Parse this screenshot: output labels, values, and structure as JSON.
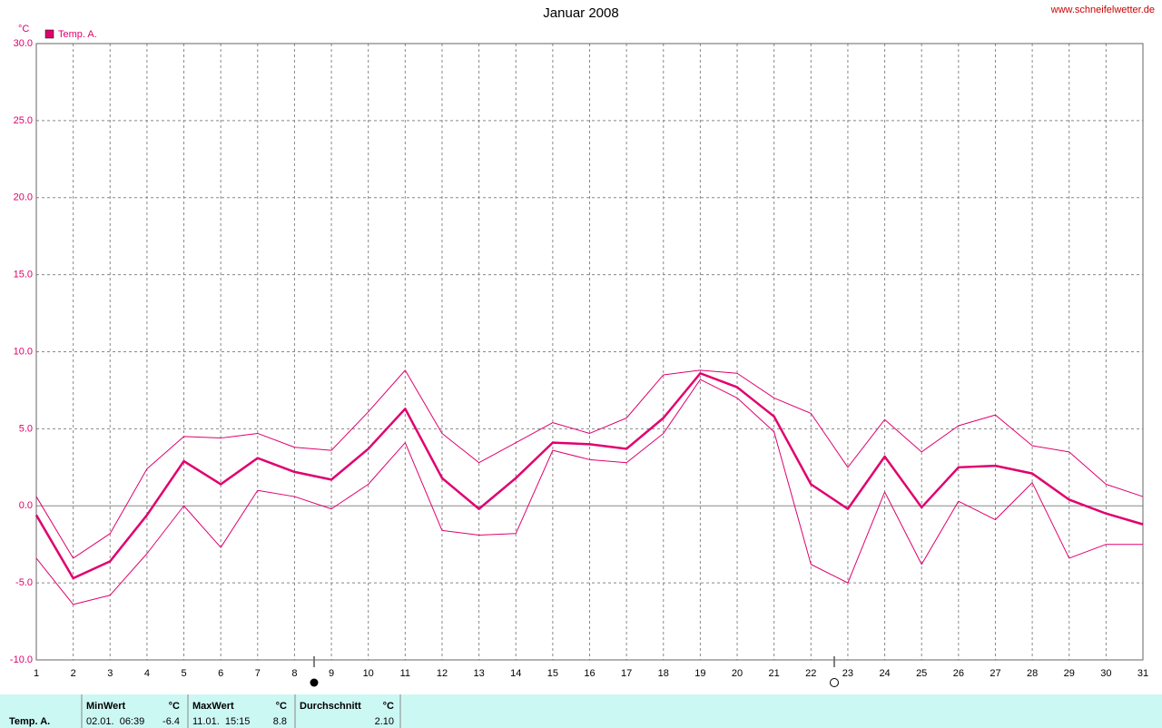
{
  "chart_data": {
    "type": "line",
    "title": "Januar 2008",
    "source": "www.schneifelwetter.de",
    "ylabel": "°C",
    "x": [
      1,
      2,
      3,
      4,
      5,
      6,
      7,
      8,
      9,
      10,
      11,
      12,
      13,
      14,
      15,
      16,
      17,
      18,
      19,
      20,
      21,
      22,
      23,
      24,
      25,
      26,
      27,
      28,
      29,
      30,
      31
    ],
    "xlim": [
      1,
      31
    ],
    "xticks": [
      1,
      2,
      3,
      4,
      5,
      6,
      7,
      8,
      9,
      10,
      11,
      12,
      13,
      14,
      15,
      16,
      17,
      18,
      19,
      20,
      21,
      22,
      23,
      24,
      25,
      26,
      27,
      28,
      29,
      30,
      31
    ],
    "ylim": [
      -10,
      30
    ],
    "yticks": [
      {
        "value": -10,
        "label": "-10.0"
      },
      {
        "value": -5,
        "label": "-5.0"
      },
      {
        "value": 0,
        "label": "0.0"
      },
      {
        "value": 5,
        "label": "5.0"
      },
      {
        "value": 10,
        "label": "10.0"
      },
      {
        "value": 15,
        "label": "15.0"
      },
      {
        "value": 20,
        "label": "20.0"
      },
      {
        "value": 25,
        "label": "25.0"
      },
      {
        "value": 30,
        "label": "30.0"
      }
    ],
    "grid": true,
    "legend": "top-left",
    "series": [
      {
        "name": "Temp. A.",
        "color": "#e0006f",
        "width": 2.5,
        "values": [
          -0.6,
          -4.7,
          -3.6,
          -0.6,
          2.9,
          1.4,
          3.1,
          2.2,
          1.7,
          3.7,
          6.3,
          1.8,
          -0.2,
          1.8,
          4.1,
          4.0,
          3.7,
          5.7,
          8.6,
          7.7,
          5.8,
          1.4,
          -0.2,
          3.2,
          -0.1,
          2.5,
          2.6,
          2.1,
          0.4,
          -0.5,
          -1.2
        ]
      },
      {
        "color": "#e0006f",
        "width": 1,
        "values": [
          0.6,
          -3.4,
          -1.8,
          2.4,
          4.5,
          4.4,
          4.7,
          3.8,
          3.6,
          6.1,
          8.8,
          4.7,
          2.8,
          4.1,
          5.4,
          4.7,
          5.7,
          8.5,
          8.8,
          8.6,
          7.0,
          6.0,
          2.5,
          5.6,
          3.5,
          5.2,
          5.9,
          3.9,
          3.5,
          1.4,
          0.6
        ]
      },
      {
        "color": "#e0006f",
        "width": 1,
        "values": [
          -3.4,
          -6.4,
          -5.8,
          -3.1,
          0.0,
          -2.7,
          1.0,
          0.6,
          -0.2,
          1.4,
          4.1,
          -1.6,
          -1.9,
          -1.8,
          3.6,
          3.0,
          2.8,
          4.7,
          8.2,
          7.0,
          4.8,
          -3.8,
          -5.0,
          0.9,
          -3.8,
          0.3,
          -0.9,
          1.5,
          -3.4,
          -2.5,
          -2.5
        ]
      }
    ]
  },
  "summary": {
    "label": "Temp. A.",
    "columns": [
      {
        "head": "MinWert",
        "unit": "°C",
        "time": "02.01.  06:39",
        "value": "-6.4"
      },
      {
        "head": "MaxWert",
        "unit": "°C",
        "time": "11.01.  15:15",
        "value": "8.8"
      },
      {
        "head": "Durchschnitt",
        "unit": "°C",
        "time": "",
        "value": "2.10"
      }
    ]
  }
}
